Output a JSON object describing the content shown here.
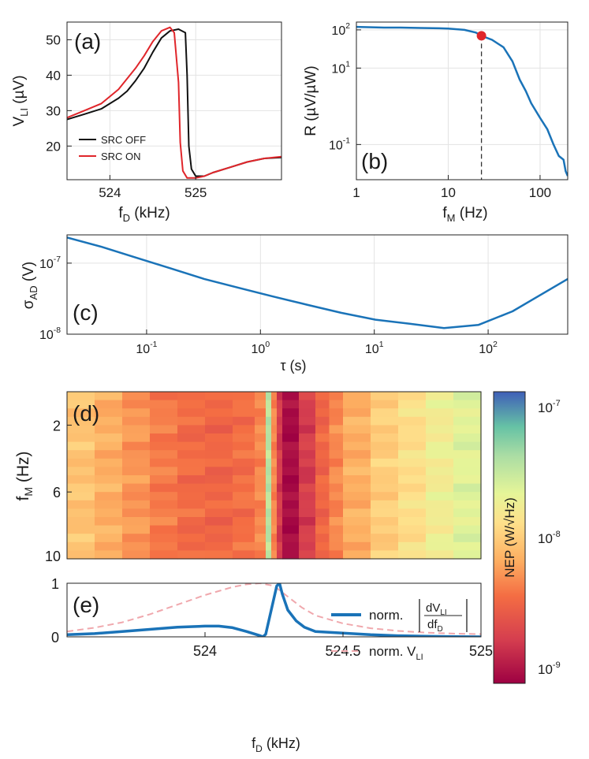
{
  "colors": {
    "blue": "#1a73b8",
    "red": "#e0262b",
    "black": "#111111",
    "pink": "#f0a8ad",
    "grid": "#e3e3e3"
  },
  "chart_data": [
    {
      "panel": "(a)",
      "type": "line",
      "xlabel": "f",
      "xlabel_sub": "D",
      "xlabel_unit": " (kHz)",
      "ylabel": "V",
      "ylabel_sub": "LI",
      "ylabel_unit": " (µV)",
      "xlim": [
        523.5,
        526.0
      ],
      "ylim": [
        10.5,
        55
      ],
      "xticks": [
        524,
        525
      ],
      "xtick_labels": [
        "524",
        "525"
      ],
      "yticks": [
        20,
        30,
        40,
        50
      ],
      "ytick_labels": [
        "20",
        "30",
        "40",
        "50"
      ],
      "legend": [
        "SRC OFF",
        "SRC ON"
      ],
      "series": [
        {
          "name": "SRC OFF",
          "color": "#111111",
          "x": [
            523.5,
            523.7,
            523.9,
            524.1,
            524.2,
            524.3,
            524.4,
            524.5,
            524.6,
            524.7,
            524.8,
            524.88,
            524.9,
            524.92,
            524.95,
            525.0,
            525.1,
            525.2,
            525.4,
            525.6,
            525.8,
            526.0
          ],
          "y": [
            27.5,
            29.0,
            30.5,
            33.5,
            35.5,
            38.5,
            42.0,
            46.5,
            50.5,
            52.5,
            53.0,
            52.0,
            40.0,
            20.0,
            13.5,
            11.5,
            11.5,
            12.5,
            14.0,
            15.5,
            16.5,
            16.8
          ]
        },
        {
          "name": "SRC ON",
          "color": "#e0262b",
          "x": [
            523.5,
            523.7,
            523.9,
            524.1,
            524.3,
            524.4,
            524.5,
            524.6,
            524.7,
            524.75,
            524.8,
            524.82,
            524.85,
            524.9,
            525.0,
            525.1,
            525.2,
            525.4,
            525.6,
            525.8,
            526.0
          ],
          "y": [
            28.0,
            30.0,
            32.0,
            36.0,
            42.0,
            45.5,
            49.5,
            52.5,
            53.5,
            52.0,
            38.0,
            21.0,
            13.0,
            11.0,
            11.0,
            11.5,
            12.5,
            14.0,
            15.5,
            16.5,
            17.0
          ]
        }
      ]
    },
    {
      "panel": "(b)",
      "type": "line",
      "xscale": "log",
      "yscale": "log",
      "xlabel": "f",
      "xlabel_sub": "M",
      "xlabel_unit": " (Hz)",
      "ylabel": "R (µV/µW)",
      "xlim": [
        1,
        200
      ],
      "ylim": [
        0.012,
        160
      ],
      "xticks": [
        1,
        10,
        100
      ],
      "xtick_labels": [
        "1",
        "10",
        "100"
      ],
      "yticks": [
        0.1,
        10,
        100
      ],
      "ytick_bases": [
        "10",
        "10",
        "10"
      ],
      "ytick_exps": [
        "-1",
        "1",
        "2"
      ],
      "marker": {
        "x": 23,
        "y": 70
      },
      "series": [
        {
          "name": "R",
          "color": "#1a73b8",
          "x": [
            1,
            2,
            3,
            5,
            8,
            10,
            15,
            20,
            23,
            30,
            40,
            50,
            60,
            70,
            80,
            100,
            120,
            140,
            160,
            180,
            190,
            200
          ],
          "y": [
            120,
            115,
            115,
            112,
            110,
            108,
            100,
            85,
            70,
            55,
            35,
            15,
            5,
            2.5,
            1.2,
            0.5,
            0.25,
            0.1,
            0.05,
            0.04,
            0.02,
            0.015
          ]
        }
      ]
    },
    {
      "panel": "(c)",
      "type": "line",
      "xscale": "log",
      "yscale": "log",
      "xlabel": "τ (s)",
      "ylabel": "σ",
      "ylabel_sub": "AD",
      "ylabel_unit": " (V)",
      "xlim": [
        0.02,
        500
      ],
      "ylim": [
        1e-08,
        2.5e-07
      ],
      "xticks": [
        0.1,
        1,
        10,
        100
      ],
      "xtick_bases": [
        "10",
        "10",
        "10",
        "10"
      ],
      "xtick_exps": [
        "-1",
        "0",
        "1",
        "2"
      ],
      "yticks": [
        1e-08,
        1e-07
      ],
      "ytick_bases": [
        "10",
        "10"
      ],
      "ytick_exps": [
        "-8",
        "-7"
      ],
      "series": [
        {
          "name": "Allan deviation",
          "color": "#1a73b8",
          "x": [
            0.02,
            0.04,
            0.08,
            0.16,
            0.32,
            0.64,
            1.28,
            2.56,
            5.12,
            10.24,
            20.48,
            40.96,
            81.92,
            163.84,
            500
          ],
          "y": [
            2.3e-07,
            1.7e-07,
            1.2e-07,
            8.5e-08,
            6e-08,
            4.5e-08,
            3.4e-08,
            2.6e-08,
            2e-08,
            1.6e-08,
            1.4e-08,
            1.22e-08,
            1.35e-08,
            2.1e-08,
            6e-08
          ]
        }
      ]
    },
    {
      "panel": "(d)",
      "type": "heatmap",
      "ylabel": "f",
      "ylabel_sub": "M",
      "ylabel_unit": " (Hz)",
      "xlim": [
        523.5,
        525.0
      ],
      "ylim": [
        0,
        10
      ],
      "yticks": [
        2,
        6,
        10
      ],
      "ytick_labels": [
        "2",
        "6",
        "10"
      ],
      "colorbar_label": "NEP (W/√Hz)",
      "colorbar_range": [
        1e-09,
        1e-07
      ],
      "colorbar_bases": [
        "10",
        "10",
        "10"
      ],
      "colorbar_exps": [
        "-7",
        "-8",
        "-9"
      ],
      "columns": [
        {
          "x0": 523.5,
          "x1": 523.6,
          "log10_nep": -8.05
        },
        {
          "x0": 523.6,
          "x1": 523.7,
          "log10_nep": -8.15
        },
        {
          "x0": 523.7,
          "x1": 523.8,
          "log10_nep": -8.25
        },
        {
          "x0": 523.8,
          "x1": 523.9,
          "log10_nep": -8.35
        },
        {
          "x0": 523.9,
          "x1": 524.0,
          "log10_nep": -8.42
        },
        {
          "x0": 524.0,
          "x1": 524.1,
          "log10_nep": -8.45
        },
        {
          "x0": 524.1,
          "x1": 524.18,
          "log10_nep": -8.4
        },
        {
          "x0": 524.18,
          "x1": 524.22,
          "log10_nep": -8.3
        },
        {
          "x0": 524.22,
          "x1": 524.24,
          "log10_nep": -7.5
        },
        {
          "x0": 524.24,
          "x1": 524.26,
          "log10_nep": -8.3
        },
        {
          "x0": 524.26,
          "x1": 524.28,
          "log10_nep": -8.7
        },
        {
          "x0": 524.28,
          "x1": 524.34,
          "log10_nep": -8.95
        },
        {
          "x0": 524.34,
          "x1": 524.4,
          "log10_nep": -8.7
        },
        {
          "x0": 524.4,
          "x1": 524.45,
          "log10_nep": -8.45
        },
        {
          "x0": 524.45,
          "x1": 524.5,
          "log10_nep": -8.3
        },
        {
          "x0": 524.5,
          "x1": 524.6,
          "log10_nep": -8.15
        },
        {
          "x0": 524.6,
          "x1": 524.7,
          "log10_nep": -8.0
        },
        {
          "x0": 524.7,
          "x1": 524.8,
          "log10_nep": -7.9
        },
        {
          "x0": 524.8,
          "x1": 524.9,
          "log10_nep": -7.78
        },
        {
          "x0": 524.9,
          "x1": 525.0,
          "log10_nep": -7.68
        }
      ]
    },
    {
      "panel": "(e)",
      "type": "line",
      "xlabel": "f",
      "xlabel_sub": "D",
      "xlabel_unit": " (kHz)",
      "xlim": [
        523.5,
        525.0
      ],
      "ylim": [
        0,
        1
      ],
      "xticks": [
        524,
        524.5,
        525
      ],
      "xtick_labels": [
        "524",
        "524.5",
        "525"
      ],
      "yticks": [
        0,
        1
      ],
      "ytick_labels": [
        "0",
        "1"
      ],
      "legend_derivative": {
        "prefix": "norm.",
        "num": "dV",
        "num_sub": "LI",
        "den": "df",
        "den_sub": "D"
      },
      "legend_vli": {
        "prefix": "norm. V",
        "sub": "LI"
      },
      "series": [
        {
          "name": "norm. |dV_LI/df_D|",
          "color": "#1a73b8",
          "x": [
            523.5,
            523.6,
            523.7,
            523.8,
            523.9,
            524.0,
            524.05,
            524.1,
            524.15,
            524.2,
            524.21,
            524.22,
            524.24,
            524.26,
            524.27,
            524.28,
            524.3,
            524.33,
            524.36,
            524.4,
            524.5,
            524.6,
            524.7,
            524.8,
            524.9,
            525.0
          ],
          "y": [
            0.04,
            0.06,
            0.1,
            0.14,
            0.18,
            0.2,
            0.2,
            0.17,
            0.1,
            0.02,
            0.0,
            0.05,
            0.5,
            0.95,
            1.0,
            0.8,
            0.5,
            0.3,
            0.18,
            0.1,
            0.07,
            0.04,
            0.02,
            0.01,
            0.005,
            0.0
          ]
        },
        {
          "name": "norm. V_LI",
          "color": "#f0a8ad",
          "x": [
            523.5,
            523.6,
            523.7,
            523.8,
            523.9,
            524.0,
            524.1,
            524.15,
            524.2,
            524.25,
            524.3,
            524.35,
            524.4,
            524.5,
            524.6,
            524.7,
            524.8,
            524.9,
            525.0
          ],
          "y": [
            0.1,
            0.17,
            0.27,
            0.42,
            0.6,
            0.78,
            0.93,
            0.98,
            1.0,
            0.95,
            0.75,
            0.55,
            0.4,
            0.25,
            0.16,
            0.11,
            0.08,
            0.06,
            0.05
          ]
        }
      ]
    }
  ]
}
